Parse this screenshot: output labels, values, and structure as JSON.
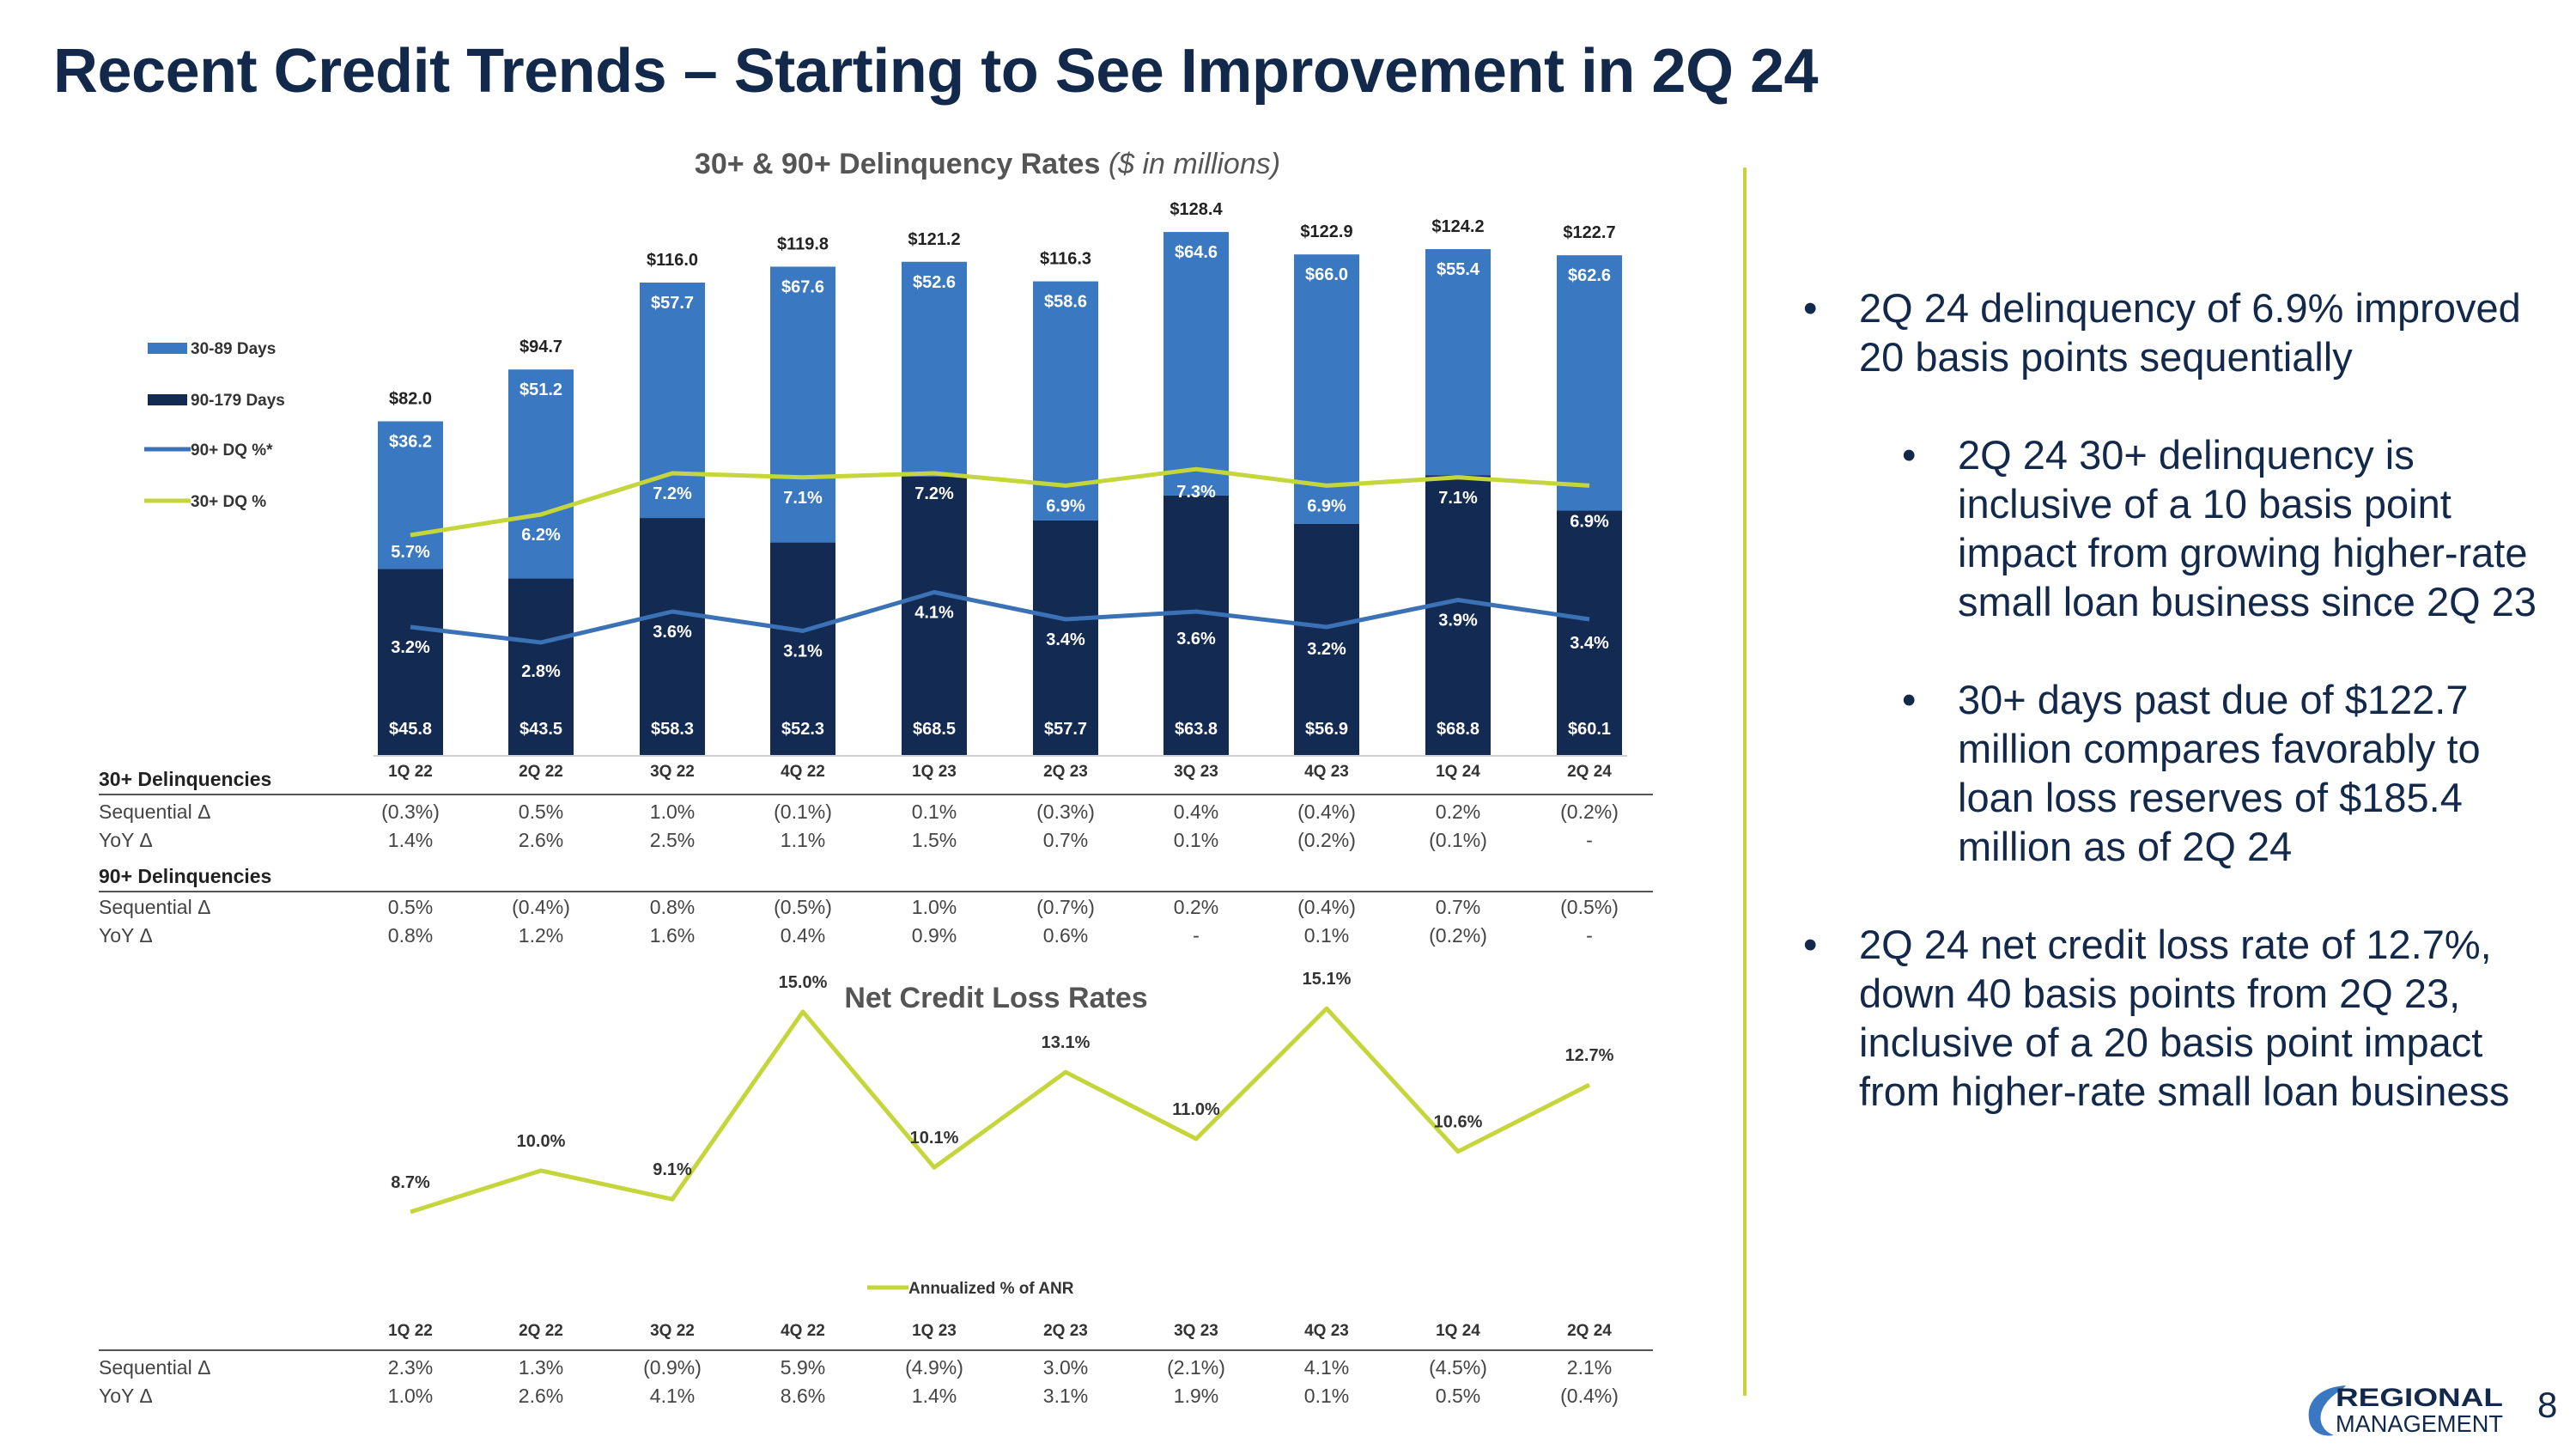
{
  "page": {
    "title": "Recent Credit Trends – Starting to See Improvement in 2Q 24",
    "page_number": "8",
    "logo": {
      "line1": "REGIONAL",
      "line2": "MANAGEMENT"
    }
  },
  "colors": {
    "navy": "#13294b",
    "blue": "#3b78c2",
    "dark": "#132a52",
    "lime": "#c5d63d",
    "line_blue": "#3b72b5"
  },
  "delinquency_title": "30+ & 90+ Delinquency Rates",
  "delinquency_subtitle": "($ in millions)",
  "nco_title": "Net Credit Loss Rates",
  "table": {
    "d30_header": "30+ Delinquencies",
    "d90_header": "90+ Delinquencies",
    "seq_label": "Sequential Δ",
    "yoy_label": "YoY Δ",
    "d30_seq": [
      "(0.3%)",
      "0.5%",
      "1.0%",
      "(0.1%)",
      "0.1%",
      "(0.3%)",
      "0.4%",
      "(0.4%)",
      "0.2%",
      "(0.2%)"
    ],
    "d30_yoy": [
      "1.4%",
      "2.6%",
      "2.5%",
      "1.1%",
      "1.5%",
      "0.7%",
      "0.1%",
      "(0.2%)",
      "(0.1%)",
      "-"
    ],
    "d90_seq": [
      "0.5%",
      "(0.4%)",
      "0.8%",
      "(0.5%)",
      "1.0%",
      "(0.7%)",
      "0.2%",
      "(0.4%)",
      "0.7%",
      "(0.5%)"
    ],
    "d90_yoy": [
      "0.8%",
      "1.2%",
      "1.6%",
      "0.4%",
      "0.9%",
      "0.6%",
      "-",
      "0.1%",
      "(0.2%)",
      "-"
    ],
    "nco_seq": [
      "2.3%",
      "1.3%",
      "(0.9%)",
      "5.9%",
      "(4.9%)",
      "3.0%",
      "(2.1%)",
      "4.1%",
      "(4.5%)",
      "2.1%"
    ],
    "nco_yoy": [
      "1.0%",
      "2.6%",
      "4.1%",
      "8.6%",
      "1.4%",
      "3.1%",
      "1.9%",
      "0.1%",
      "0.5%",
      "(0.4%)"
    ]
  },
  "bullets": [
    {
      "text": "2Q 24 delinquency of 6.9% improved 20 basis points sequentially"
    },
    {
      "text": "2Q 24 30+ delinquency is inclusive of a 10 basis point impact from growing higher-rate small loan business since 2Q 23"
    },
    {
      "text": "30+ days past due of $122.7 million compares favorably to loan loss reserves of $185.4 million as of 2Q 24"
    },
    {
      "text": "2Q 24 net credit loss rate of 12.7%, down 40 basis points from 2Q 23, inclusive of a 20 basis point impact from higher-rate small loan business"
    }
  ],
  "chart_data": [
    {
      "type": "bar",
      "stacked": true,
      "title": "30+ & 90+ Delinquency Rates",
      "subtitle": "($ in millions)",
      "categories": [
        "1Q 22",
        "2Q 22",
        "3Q 22",
        "4Q 22",
        "1Q 23",
        "2Q 23",
        "3Q 23",
        "4Q 23",
        "1Q 24",
        "2Q 24"
      ],
      "series": [
        {
          "name": "90-179 Days",
          "values": [
            45.8,
            43.5,
            58.3,
            52.3,
            68.5,
            57.7,
            63.8,
            56.9,
            68.8,
            60.1
          ],
          "labels": [
            "$45.8",
            "$43.5",
            "$58.3",
            "$52.3",
            "$68.5",
            "$57.7",
            "$63.8",
            "$56.9",
            "$68.8",
            "$60.1"
          ]
        },
        {
          "name": "30-89 Days",
          "values": [
            36.2,
            51.2,
            57.7,
            67.6,
            52.6,
            58.6,
            64.6,
            66.0,
            55.4,
            62.6
          ],
          "labels": [
            "$36.2",
            "$51.2",
            "$57.7",
            "$67.6",
            "$52.6",
            "$58.6",
            "$64.6",
            "$66.0",
            "$55.4",
            "$62.6"
          ]
        }
      ],
      "totals": [
        82.0,
        94.7,
        116.0,
        119.8,
        121.2,
        116.3,
        128.4,
        122.9,
        124.2,
        122.7
      ],
      "total_labels": [
        "$82.0",
        "$94.7",
        "$116.0",
        "$119.8",
        "$121.2",
        "$116.3",
        "$128.4",
        "$122.9",
        "$124.2",
        "$122.7"
      ],
      "lines": [
        {
          "name": "90+ DQ %*",
          "values": [
            3.2,
            2.8,
            3.6,
            3.1,
            4.1,
            3.4,
            3.6,
            3.2,
            3.9,
            3.4
          ],
          "labels": [
            "3.2%",
            "2.8%",
            "3.6%",
            "3.1%",
            "4.1%",
            "3.4%",
            "3.6%",
            "3.2%",
            "3.9%",
            "3.4%"
          ]
        },
        {
          "name": "30+ DQ %",
          "values": [
            5.7,
            6.2,
            7.2,
            7.1,
            7.2,
            6.9,
            7.3,
            6.9,
            7.1,
            6.9
          ],
          "labels": [
            "5.7%",
            "6.2%",
            "7.2%",
            "7.1%",
            "7.2%",
            "6.9%",
            "7.3%",
            "6.9%",
            "7.1%",
            "6.9%"
          ]
        }
      ],
      "legend": [
        "30-89 Days",
        "90-179 Days",
        "90+ DQ %*",
        "30+ DQ %"
      ],
      "legend_position": "left",
      "ylim": [
        0,
        130
      ],
      "grid": false
    },
    {
      "type": "line",
      "title": "Net Credit Loss Rates",
      "categories": [
        "1Q 22",
        "2Q 22",
        "3Q 22",
        "4Q 22",
        "1Q 23",
        "2Q 23",
        "3Q 23",
        "4Q 23",
        "1Q 24",
        "2Q 24"
      ],
      "series": [
        {
          "name": "Annualized % of ANR",
          "values": [
            8.7,
            10.0,
            9.1,
            15.0,
            10.1,
            13.1,
            11.0,
            15.1,
            10.6,
            12.7
          ],
          "labels": [
            "8.7%",
            "10.0%",
            "9.1%",
            "15.0%",
            "10.1%",
            "13.1%",
            "11.0%",
            "15.1%",
            "10.6%",
            "12.7%"
          ]
        }
      ],
      "legend_position": "bottom",
      "ylim": [
        6,
        17
      ],
      "grid": false
    }
  ]
}
